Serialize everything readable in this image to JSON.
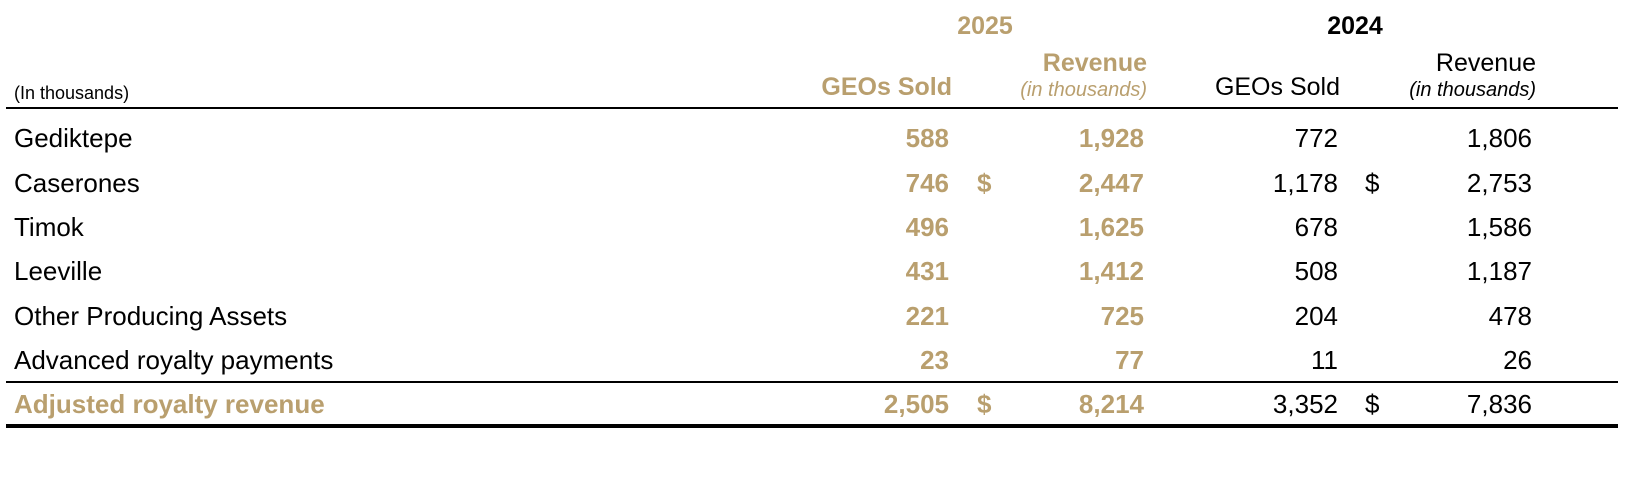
{
  "table": {
    "units_label": "(In thousands)",
    "years": {
      "current": "2025",
      "prior": "2024"
    },
    "columns": {
      "geos_sold": "GEOs Sold",
      "revenue": "Revenue",
      "revenue_units": "(in thousands)"
    },
    "currency_symbol": "$",
    "rows": [
      {
        "name": "Gediktepe",
        "geos_2025": "588",
        "rev_2025": "1,928",
        "geos_2024": "772",
        "rev_2024": "1,806",
        "show_dollar": false
      },
      {
        "name": "Caserones",
        "geos_2025": "746",
        "rev_2025": "2,447",
        "geos_2024": "1,178",
        "rev_2024": "2,753",
        "show_dollar": true
      },
      {
        "name": "Timok",
        "geos_2025": "496",
        "rev_2025": "1,625",
        "geos_2024": "678",
        "rev_2024": "1,586",
        "show_dollar": false
      },
      {
        "name": "Leeville",
        "geos_2025": "431",
        "rev_2025": "1,412",
        "geos_2024": "508",
        "rev_2024": "1,187",
        "show_dollar": false
      },
      {
        "name": "Other Producing Assets",
        "geos_2025": "221",
        "rev_2025": "725",
        "geos_2024": "204",
        "rev_2024": "478",
        "show_dollar": false
      },
      {
        "name": "Advanced royalty payments",
        "geos_2025": "23",
        "rev_2025": "77",
        "geos_2024": "11",
        "rev_2024": "26",
        "show_dollar": false
      }
    ],
    "total": {
      "name": "Adjusted royalty revenue",
      "geos_2025": "2,505",
      "rev_2025": "8,214",
      "geos_2024": "3,352",
      "rev_2024": "7,836"
    }
  },
  "colors": {
    "accent_gold": "#b99f6e",
    "text": "#000000"
  }
}
